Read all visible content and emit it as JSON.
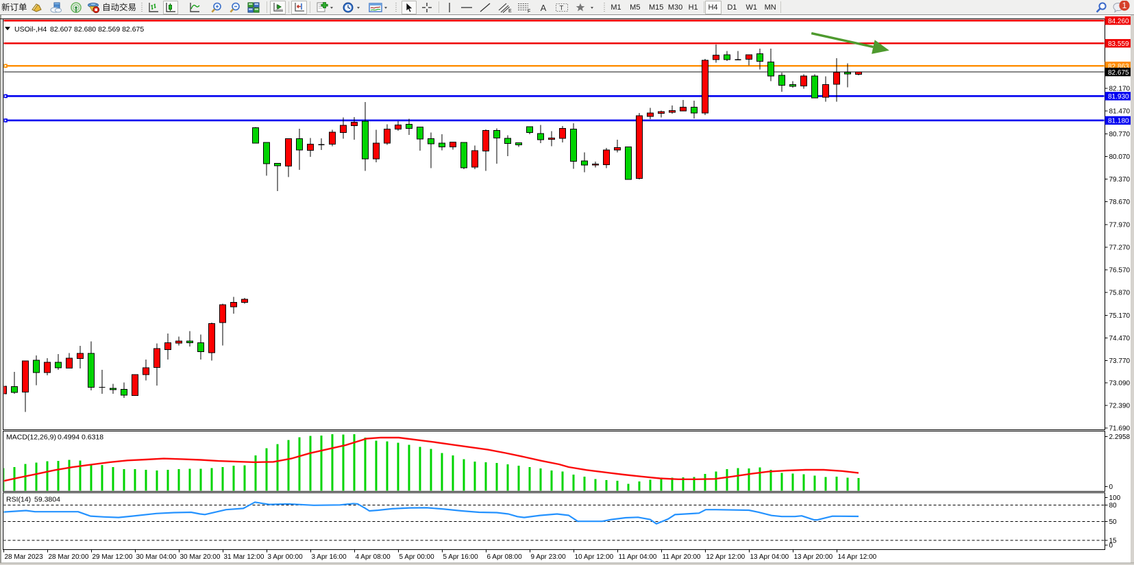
{
  "window": {
    "notification_count": "1"
  },
  "toolbar": {
    "new_order_label": "新订单",
    "autotrade_label": "自动交易",
    "timeframes": [
      "M1",
      "M5",
      "M15",
      "M30",
      "H1",
      "H4",
      "D1",
      "W1",
      "MN"
    ],
    "active_timeframe": "H4",
    "drawing_tool_a_label": "A",
    "icon_names": [
      "mql-book-icon",
      "cloud-upload-icon",
      "signal-icon",
      "autotrade-icon",
      "bars-chart-icon",
      "candles-chart-icon",
      "line-chart-icon",
      "zoom-in-icon",
      "zoom-out-icon",
      "tile-windows-icon",
      "auto-scroll-icon",
      "chart-shift-icon",
      "new-object-icon",
      "period-clock-icon",
      "indicators-icon",
      "cursor-icon",
      "crosshair-icon",
      "vertical-line-icon",
      "horizontal-line-icon",
      "trendline-icon",
      "channel-icon",
      "fibonacci-icon",
      "text-icon",
      "label-icon",
      "shapes-icon",
      "search-icon",
      "chat-icon"
    ]
  },
  "chart": {
    "title_symbol": "USOil-,H4",
    "title_ohlc": "82.607 82.680 82.569 82.675"
  },
  "chart_data": {
    "type": "candlestick",
    "symbol": "USOil-",
    "period": "H4",
    "current_bar": {
      "open": 82.607,
      "high": 82.68,
      "low": 82.569,
      "close": 82.675
    },
    "convention": "red=bullish, green=bearish (Chinese color convention)",
    "bull_color": "#fe0000",
    "bear_color": "#00d400",
    "outline_color": "#000000",
    "price_axis": {
      "ticks": [
        82.17,
        81.47,
        80.77,
        80.07,
        79.37,
        78.67,
        77.97,
        77.27,
        76.57,
        75.87,
        75.17,
        74.47,
        73.77,
        73.09,
        72.39,
        71.69
      ],
      "tick_labels": [
        "82.170",
        "81.470",
        "80.770",
        "80.070",
        "79.370",
        "78.670",
        "77.970",
        "77.270",
        "76.570",
        "75.870",
        "75.170",
        "74.470",
        "73.770",
        "73.090",
        "72.390",
        "71.690"
      ],
      "visible_range": [
        71.64,
        84.31
      ]
    },
    "time_axis": {
      "labels": [
        "28 Mar 2023",
        "28 Mar 20:00",
        "29 Mar 12:00",
        "30 Mar 04:00",
        "30 Mar 20:00",
        "31 Mar 12:00",
        "3 Apr 00:00",
        "3 Apr 16:00",
        "4 Apr 08:00",
        "5 Apr 00:00",
        "5 Apr 16:00",
        "6 Apr 08:00",
        "9 Apr 23:00",
        "10 Apr 12:00",
        "11 Apr 04:00",
        "11 Apr 20:00",
        "12 Apr 12:00",
        "13 Apr 04:00",
        "13 Apr 20:00",
        "14 Apr 12:00"
      ],
      "bars_per_label": 4
    },
    "candles": [
      [
        72.745,
        73.243,
        72.652,
        72.981
      ],
      [
        72.969,
        73.421,
        72.745,
        72.791
      ],
      [
        72.8,
        73.772,
        72.191,
        73.765
      ],
      [
        73.782,
        73.934,
        73.013,
        73.402
      ],
      [
        73.402,
        73.845,
        73.317,
        73.719
      ],
      [
        73.719,
        73.974,
        73.484,
        73.545
      ],
      [
        73.537,
        74.008,
        73.524,
        73.845
      ],
      [
        73.833,
        74.222,
        73.524,
        73.995
      ],
      [
        73.995,
        74.365,
        72.848,
        72.95
      ],
      [
        72.948,
        73.484,
        72.747,
        72.948
      ],
      [
        72.918,
        73.053,
        72.747,
        72.869
      ],
      [
        72.888,
        73.093,
        72.622,
        72.705
      ],
      [
        72.694,
        73.349,
        72.686,
        73.341
      ],
      [
        73.343,
        73.803,
        73.159,
        73.545
      ],
      [
        73.558,
        74.296,
        73.005,
        74.141
      ],
      [
        74.11,
        74.602,
        73.803,
        74.325
      ],
      [
        74.306,
        74.509,
        74.232,
        74.374
      ],
      [
        74.374,
        74.682,
        74.203,
        74.325
      ],
      [
        74.325,
        74.57,
        73.803,
        74.048
      ],
      [
        74.019,
        74.94,
        73.772,
        74.908
      ],
      [
        74.94,
        75.523,
        74.232,
        75.491
      ],
      [
        75.43,
        75.739,
        75.217,
        75.565
      ],
      [
        75.565,
        75.705,
        75.523,
        75.658
      ],
      [
        80.957,
        80.976,
        80.467,
        80.478
      ],
      [
        80.497,
        80.505,
        79.478,
        79.844
      ],
      [
        79.856,
        79.867,
        78.999,
        79.787
      ],
      [
        79.768,
        80.623,
        79.43,
        80.613
      ],
      [
        80.619,
        80.919,
        79.652,
        80.266
      ],
      [
        80.256,
        80.638,
        80.055,
        80.448
      ],
      [
        80.431,
        80.623,
        80.266,
        80.431
      ],
      [
        80.448,
        80.89,
        80.383,
        80.816
      ],
      [
        80.805,
        81.272,
        80.613,
        81.027
      ],
      [
        81.016,
        81.285,
        80.581,
        81.12
      ],
      [
        81.154,
        81.747,
        79.624,
        79.994
      ],
      [
        79.994,
        80.896,
        79.892,
        80.484
      ],
      [
        80.484,
        81.057,
        80.429,
        80.913
      ],
      [
        80.913,
        81.158,
        80.862,
        81.042
      ],
      [
        81.065,
        81.228,
        80.735,
        80.938
      ],
      [
        80.978,
        80.987,
        80.247,
        80.604
      ],
      [
        80.621,
        80.805,
        79.711,
        80.459
      ],
      [
        80.478,
        80.754,
        80.256,
        80.364
      ],
      [
        80.364,
        80.522,
        80.275,
        80.516
      ],
      [
        80.505,
        80.516,
        79.673,
        79.719
      ],
      [
        79.736,
        80.41,
        79.673,
        80.247
      ],
      [
        80.237,
        80.9,
        79.622,
        80.871
      ],
      [
        80.873,
        80.938,
        79.844,
        80.64
      ],
      [
        80.632,
        80.721,
        80.083,
        80.467
      ],
      [
        80.486,
        80.501,
        80.364,
        80.429
      ],
      [
        80.983,
        80.991,
        80.75,
        80.811
      ],
      [
        80.778,
        81.035,
        80.484,
        80.585
      ],
      [
        80.594,
        80.852,
        80.38,
        80.634
      ],
      [
        80.628,
        81.004,
        80.503,
        80.934
      ],
      [
        80.913,
        81.097,
        79.692,
        79.922
      ],
      [
        79.93,
        80.197,
        79.582,
        79.799
      ],
      [
        79.799,
        79.909,
        79.725,
        79.84
      ],
      [
        79.816,
        80.328,
        79.704,
        80.266
      ],
      [
        80.266,
        80.585,
        80.197,
        80.34
      ],
      [
        80.368,
        80.374,
        79.356,
        79.364
      ],
      [
        79.39,
        81.414,
        79.364,
        81.323
      ],
      [
        81.302,
        81.568,
        81.221,
        81.414
      ],
      [
        81.397,
        81.485,
        81.27,
        81.45
      ],
      [
        81.435,
        81.642,
        81.388,
        81.481
      ],
      [
        81.477,
        81.813,
        81.458,
        81.593
      ],
      [
        81.593,
        81.79,
        81.245,
        81.405
      ],
      [
        81.405,
        83.083,
        81.348,
        83.036
      ],
      [
        83.055,
        83.52,
        82.964,
        83.197
      ],
      [
        83.205,
        83.324,
        83.019,
        83.062
      ],
      [
        83.055,
        83.324,
        83.032,
        83.055
      ],
      [
        83.072,
        83.216,
        82.876,
        83.21
      ],
      [
        83.233,
        83.395,
        82.749,
        83.0
      ],
      [
        82.983,
        83.395,
        82.392,
        82.552
      ],
      [
        82.571,
        82.66,
        82.069,
        82.265
      ],
      [
        82.284,
        82.392,
        82.193,
        82.229
      ],
      [
        82.248,
        82.605,
        82.157,
        82.552
      ],
      [
        82.552,
        82.599,
        81.862,
        81.87
      ],
      [
        81.895,
        82.544,
        81.756,
        82.282
      ],
      [
        82.293,
        83.098,
        81.762,
        82.667
      ],
      [
        82.667,
        82.939,
        82.2,
        82.614
      ],
      [
        82.607,
        82.68,
        82.569,
        82.675
      ]
    ],
    "hlines": [
      {
        "price": 84.26,
        "label": "84.260",
        "color": "#ee0000",
        "width": 2.6,
        "selected": false
      },
      {
        "price": 83.559,
        "label": "83.559",
        "color": "#ee0000",
        "width": 2.4,
        "selected": false
      },
      {
        "price": 82.863,
        "label": "82.863",
        "color": "#ff8c00",
        "width": 2.4,
        "selected": true
      },
      {
        "price": 81.93,
        "label": "81.930",
        "color": "#0000f0",
        "width": 2.6,
        "selected": true
      },
      {
        "price": 81.18,
        "label": "81.180",
        "color": "#0000f0",
        "width": 2.6,
        "selected": true
      }
    ],
    "price_line": {
      "price": 82.675,
      "label": "82.675",
      "color": "#111111"
    },
    "arrow": {
      "bar1": 73.7,
      "price1": 83.87,
      "bar2": 80.8,
      "price2": 83.34,
      "color": "#4e9a2e"
    },
    "macd": {
      "name_label": "MACD(12,26,9)",
      "values_label": "0.4994 0.6318",
      "main_value": 0.4994,
      "signal_value": 0.6318,
      "axis_max_label": "2.2958",
      "axis_zero_label": "0",
      "axis_max": 2.2958,
      "histogram": [
        0.907,
        0.9493,
        1.0704,
        1.1211,
        1.1775,
        1.1915,
        1.2366,
        1.2141,
        1.0704,
        1.0338,
        0.9493,
        0.8563,
        0.8563,
        0.8338,
        0.8056,
        0.8338,
        0.8563,
        0.8789,
        0.8789,
        0.907,
        0.9493,
        1.0,
        1.0197,
        1.4282,
        1.7155,
        1.8873,
        2.062,
        2.1718,
        2.231,
        2.2451,
        2.2901,
        2.2817,
        2.2958,
        2.1577,
        2.0254,
        2.0028,
        1.938,
        1.8648,
        1.769,
        1.6958,
        1.5268,
        1.4254,
        1.2648,
        1.1634,
        1.1408,
        1.1099,
        1.0592,
        1.0,
        0.9437,
        0.8901,
        0.7972,
        0.7662,
        0.631,
        0.5549,
        0.4563,
        0.4056,
        0.3831,
        0.2563,
        0.3465,
        0.4282,
        0.5014,
        0.5014,
        0.5183,
        0.5324,
        0.6676,
        0.7577,
        0.8535,
        0.907,
        0.893,
        0.9296,
        0.831,
        0.7042,
        0.6817,
        0.6535,
        0.5915,
        0.5324,
        0.5549,
        0.5014,
        0.4994
      ],
      "signal": [
        [
          -0.31,
          0.3408
        ],
        [
          1.38,
          0.507
        ],
        [
          3.0,
          0.6563
        ],
        [
          4.69,
          0.8197
        ],
        [
          6.31,
          0.9408
        ],
        [
          8.0,
          1.0451
        ],
        [
          9.69,
          1.1437
        ],
        [
          11.31,
          1.2169
        ],
        [
          13.0,
          1.2535
        ],
        [
          14.62,
          1.293
        ],
        [
          16.31,
          1.2704
        ],
        [
          18.0,
          1.2394
        ],
        [
          19.62,
          1.1944
        ],
        [
          21.31,
          1.1662
        ],
        [
          22.94,
          1.1437
        ],
        [
          24.62,
          1.1577
        ],
        [
          26.25,
          1.293
        ],
        [
          27.94,
          1.5127
        ],
        [
          29.56,
          1.6789
        ],
        [
          31.19,
          1.8423
        ],
        [
          33.12,
          2.1127
        ],
        [
          34.44,
          2.1577
        ],
        [
          36.06,
          2.1549
        ],
        [
          37.69,
          2.062
        ],
        [
          39.31,
          1.969
        ],
        [
          40.94,
          1.8648
        ],
        [
          42.56,
          1.7634
        ],
        [
          44.19,
          1.6592
        ],
        [
          45.81,
          1.5211
        ],
        [
          47.44,
          1.3662
        ],
        [
          49.06,
          1.2028
        ],
        [
          50.69,
          1.0563
        ],
        [
          51.56,
          0.9437
        ],
        [
          53.19,
          0.8225
        ],
        [
          54.88,
          0.7268
        ],
        [
          56.56,
          0.6338
        ],
        [
          58.19,
          0.5549
        ],
        [
          59.88,
          0.4789
        ],
        [
          61.56,
          0.4423
        ],
        [
          63.19,
          0.4423
        ],
        [
          64.88,
          0.4563
        ],
        [
          66.5,
          0.5549
        ],
        [
          68.19,
          0.6676
        ],
        [
          69.81,
          0.7577
        ],
        [
          71.5,
          0.8028
        ],
        [
          73.19,
          0.831
        ],
        [
          74.81,
          0.831
        ],
        [
          76.5,
          0.7803
        ],
        [
          78.0,
          0.7014
        ]
      ],
      "hist_color": "#00d400",
      "signal_color": "#fb0a0a"
    },
    "rsi": {
      "name_label": "RSI(14)",
      "value_label": "59.3804",
      "value": 59.3804,
      "levels": [
        80,
        50,
        15
      ],
      "axis_labels": [
        "100",
        "80",
        "50",
        "15",
        "0"
      ],
      "axis_label_values": [
        100,
        80,
        50,
        15,
        0
      ],
      "points": [
        [
          -0.31,
          66.96
        ],
        [
          2.06,
          70.13
        ],
        [
          2.88,
          67.97
        ],
        [
          6.81,
          67.97
        ],
        [
          7.94,
          59.87
        ],
        [
          9.19,
          58.35
        ],
        [
          10.5,
          57.34
        ],
        [
          11.75,
          59.87
        ],
        [
          13.94,
          64.68
        ],
        [
          15.56,
          66.33
        ],
        [
          17.12,
          66.96
        ],
        [
          17.94,
          63.8
        ],
        [
          18.38,
          62.78
        ],
        [
          20.31,
          71.77
        ],
        [
          21.88,
          74.05
        ],
        [
          22.94,
          85.57
        ],
        [
          24.25,
          81.39
        ],
        [
          25.94,
          82.41
        ],
        [
          28.31,
          79.87
        ],
        [
          30.69,
          80.51
        ],
        [
          31.94,
          83.04
        ],
        [
          32.31,
          82.41
        ],
        [
          32.94,
          75.06
        ],
        [
          33.38,
          69.49
        ],
        [
          34.19,
          70.76
        ],
        [
          35.44,
          73.42
        ],
        [
          37.06,
          75.06
        ],
        [
          38.62,
          75.32
        ],
        [
          40.19,
          72.78
        ],
        [
          41.81,
          69.49
        ],
        [
          43.38,
          66.96
        ],
        [
          45.0,
          66.33
        ],
        [
          46.06,
          63.8
        ],
        [
          46.88,
          58.99
        ],
        [
          47.5,
          57.34
        ],
        [
          48.94,
          61.14
        ],
        [
          50.5,
          63.8
        ],
        [
          51.56,
          61.27
        ],
        [
          52.38,
          50.25
        ],
        [
          54.62,
          50.25
        ],
        [
          55.44,
          53.54
        ],
        [
          56.75,
          56.84
        ],
        [
          57.88,
          57.72
        ],
        [
          59.0,
          53.54
        ],
        [
          59.56,
          45.57
        ],
        [
          60.62,
          54.43
        ],
        [
          61.25,
          62.66
        ],
        [
          63.44,
          65.32
        ],
        [
          64.06,
          71.77
        ],
        [
          65.0,
          71.77
        ],
        [
          68.0,
          70.76
        ],
        [
          68.88,
          67.09
        ],
        [
          70.06,
          61.01
        ],
        [
          71.0,
          59.11
        ],
        [
          72.19,
          59.11
        ],
        [
          72.81,
          60.38
        ],
        [
          73.94,
          52.91
        ],
        [
          74.25,
          52.91
        ],
        [
          75.62,
          59.75
        ],
        [
          78.0,
          59.38
        ]
      ],
      "line_color": "#2492ff"
    }
  }
}
